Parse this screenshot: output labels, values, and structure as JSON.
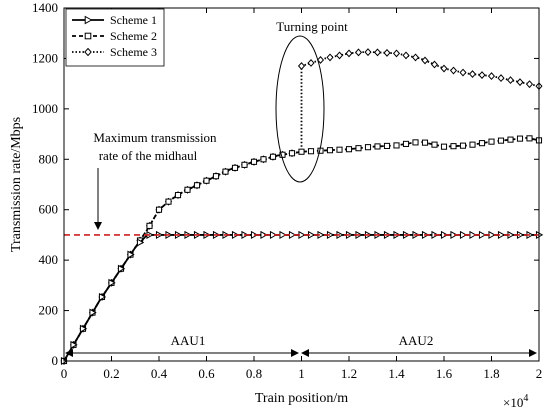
{
  "chart_data": {
    "type": "line",
    "xlabel": "Train position/m",
    "ylabel": "Transmission rate/Mbps",
    "x_multiplier_label": "×10",
    "x_multiplier_exp": "4",
    "xlim": [
      0,
      20000
    ],
    "ylim": [
      0,
      1400
    ],
    "x_ticks": [
      0,
      2000,
      4000,
      6000,
      8000,
      10000,
      12000,
      14000,
      16000,
      18000,
      20000
    ],
    "x_tick_labels": [
      "0",
      "0.2",
      "0.4",
      "0.6",
      "0.8",
      "1",
      "1.2",
      "1.4",
      "1.6",
      "1.8",
      "2"
    ],
    "y_ticks": [
      0,
      200,
      400,
      600,
      800,
      1000,
      1200,
      1400
    ],
    "y_tick_labels": [
      "0",
      "200",
      "400",
      "600",
      "800",
      "1000",
      "1200",
      "1400"
    ],
    "grid": false,
    "legend_position": "top-left",
    "series": [
      {
        "name": "Scheme 1",
        "marker": "triangle-right",
        "line": "solid",
        "x": [
          0,
          500,
          1000,
          1500,
          2000,
          2500,
          3000,
          3500,
          3700,
          4000,
          5000,
          6000,
          7000,
          8000,
          9000,
          10000,
          11000,
          12000,
          13000,
          14000,
          15000,
          16000,
          17000,
          18000,
          19000,
          20000
        ],
        "y": [
          0,
          80,
          160,
          240,
          310,
          380,
          450,
          500,
          500,
          500,
          500,
          500,
          500,
          500,
          500,
          500,
          500,
          500,
          500,
          500,
          500,
          500,
          500,
          500,
          500,
          500
        ]
      },
      {
        "name": "Scheme 2",
        "marker": "square",
        "line": "dashed",
        "x": [
          0,
          500,
          1000,
          1500,
          2000,
          2500,
          3000,
          3500,
          4000,
          4500,
          5000,
          6000,
          7000,
          8000,
          9000,
          10000,
          11000,
          12000,
          13000,
          14000,
          15000,
          16000,
          17000,
          18000,
          19000,
          19500,
          20000
        ],
        "y": [
          0,
          80,
          160,
          240,
          310,
          380,
          450,
          520,
          600,
          640,
          670,
          715,
          760,
          790,
          815,
          830,
          835,
          840,
          850,
          855,
          870,
          850,
          855,
          870,
          880,
          885,
          875
        ]
      },
      {
        "name": "Scheme 3",
        "marker": "diamond",
        "line": "dotted",
        "x": [
          0,
          500,
          1000,
          1500,
          2000,
          2500,
          3000,
          3500,
          4000,
          4500,
          5000,
          6000,
          7000,
          8000,
          9000,
          10000,
          10000,
          11000,
          12000,
          12500,
          13000,
          14000,
          15000,
          16000,
          17000,
          18000,
          19000,
          20000
        ],
        "y": [
          0,
          80,
          160,
          240,
          310,
          380,
          450,
          520,
          600,
          640,
          670,
          715,
          760,
          790,
          815,
          830,
          1170,
          1200,
          1220,
          1225,
          1225,
          1220,
          1200,
          1160,
          1140,
          1130,
          1110,
          1090
        ]
      }
    ],
    "reference_line": {
      "y": 500,
      "color": "#cc2020",
      "style": "dashed"
    },
    "annotations": {
      "turning_point": "Turning point",
      "midhaul_line1": "Maximum transmission",
      "midhaul_line2": "rate of the midhaul",
      "aau1": "AAU1",
      "aau2": "AAU2"
    }
  }
}
